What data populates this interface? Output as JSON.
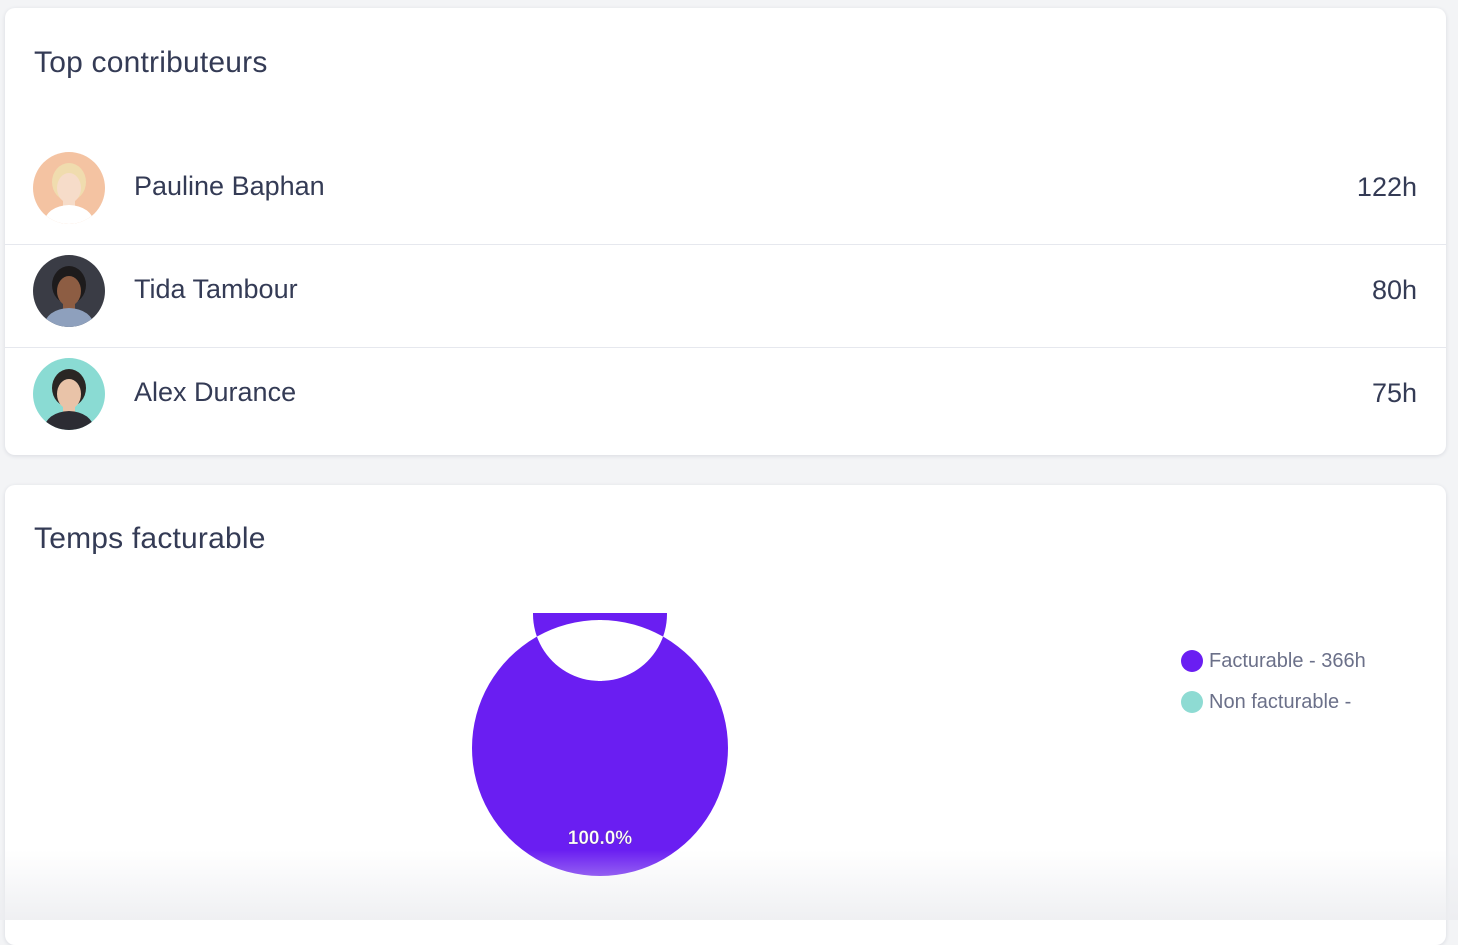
{
  "contributors": {
    "title": "Top contributeurs",
    "items": [
      {
        "name": "Pauline Baphan",
        "hours": "122h",
        "avatar_bg": "#f4c3a2",
        "hair": "#f0dcae",
        "skin": "#f6dcc9",
        "shirt": "#ffffff"
      },
      {
        "name": "Tida Tambour",
        "hours": "80h",
        "avatar_bg": "#3a3c45",
        "hair": "#1d1b1c",
        "skin": "#8d5d43",
        "shirt": "#8ea0bd"
      },
      {
        "name": "Alex Durance",
        "hours": "75h",
        "avatar_bg": "#8adbd3",
        "hair": "#2a2624",
        "skin": "#e9c3a8",
        "shirt": "#2c2c33"
      }
    ]
  },
  "billable": {
    "title": "Temps facturable",
    "legend": [
      {
        "label": "Facturable - 366h",
        "color": "#6a1ef2"
      },
      {
        "label": "Non facturable -",
        "color": "#8edbd3"
      }
    ]
  },
  "chart_data": {
    "type": "pie",
    "categories": [
      "Facturable",
      "Non facturable"
    ],
    "values": [
      366,
      0
    ],
    "colors": [
      "#6a1ef2",
      "#8edbd3"
    ],
    "data_labels": [
      "100.0%",
      ""
    ],
    "donut": true,
    "legend_position": "right"
  }
}
